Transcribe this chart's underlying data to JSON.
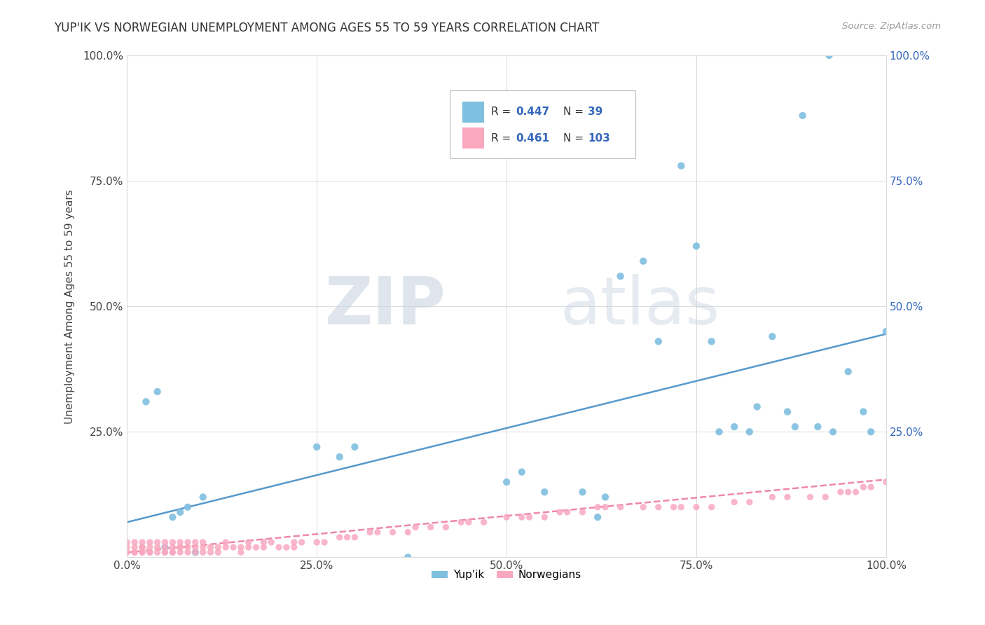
{
  "title": "YUP'IK VS NORWEGIAN UNEMPLOYMENT AMONG AGES 55 TO 59 YEARS CORRELATION CHART",
  "source": "Source: ZipAtlas.com",
  "ylabel": "Unemployment Among Ages 55 to 59 years",
  "xlim": [
    0,
    1
  ],
  "ylim": [
    0,
    1
  ],
  "xtick_labels": [
    "0.0%",
    "25.0%",
    "50.0%",
    "75.0%",
    "100.0%"
  ],
  "xtick_positions": [
    0,
    0.25,
    0.5,
    0.75,
    1.0
  ],
  "ytick_labels": [
    "25.0%",
    "50.0%",
    "75.0%",
    "100.0%"
  ],
  "ytick_positions": [
    0.25,
    0.5,
    0.75,
    1.0
  ],
  "yupik_color": "#7fbfdf",
  "norwegian_color": "#f9a8c0",
  "yupik_line_color": "#5599cc",
  "norwegian_line_color": "#ee88aa",
  "background_color": "#ffffff",
  "watermark_zip": "ZIP",
  "watermark_atlas": "atlas",
  "legend_R_yupik": "0.447",
  "legend_N_yupik": "39",
  "legend_R_norw": "0.461",
  "legend_N_norw": "103",
  "yupik_scatter_x": [
    0.025,
    0.04,
    0.05,
    0.06,
    0.07,
    0.08,
    0.09,
    0.1,
    0.25,
    0.28,
    0.3,
    0.37,
    0.5,
    0.52,
    0.55,
    0.6,
    0.62,
    0.63,
    0.65,
    0.68,
    0.7,
    0.73,
    0.75,
    0.77,
    0.78,
    0.8,
    0.82,
    0.83,
    0.85,
    0.87,
    0.88,
    0.89,
    0.91,
    0.925,
    0.93,
    0.95,
    0.97,
    0.98,
    1.0
  ],
  "yupik_scatter_y": [
    0.31,
    0.33,
    0.02,
    0.08,
    0.09,
    0.1,
    0.01,
    0.12,
    0.22,
    0.2,
    0.22,
    0.0,
    0.15,
    0.17,
    0.13,
    0.13,
    0.08,
    0.12,
    0.56,
    0.59,
    0.43,
    0.78,
    0.62,
    0.43,
    0.25,
    0.26,
    0.25,
    0.3,
    0.44,
    0.29,
    0.26,
    0.88,
    0.26,
    1.0,
    0.25,
    0.37,
    0.29,
    0.25,
    0.45
  ],
  "yupik_line_x0": 0.0,
  "yupik_line_y0": 0.07,
  "yupik_line_x1": 1.0,
  "yupik_line_y1": 0.445,
  "norw_line_x0": 0.0,
  "norw_line_y0": 0.01,
  "norw_line_x1": 1.0,
  "norw_line_y1": 0.155,
  "norw_scatter_x": [
    0.0,
    0.0,
    0.0,
    0.01,
    0.01,
    0.01,
    0.01,
    0.02,
    0.02,
    0.02,
    0.02,
    0.02,
    0.03,
    0.03,
    0.03,
    0.03,
    0.04,
    0.04,
    0.04,
    0.05,
    0.05,
    0.05,
    0.05,
    0.06,
    0.06,
    0.06,
    0.06,
    0.07,
    0.07,
    0.07,
    0.07,
    0.08,
    0.08,
    0.08,
    0.09,
    0.09,
    0.09,
    0.1,
    0.1,
    0.1,
    0.11,
    0.11,
    0.12,
    0.12,
    0.13,
    0.13,
    0.14,
    0.15,
    0.15,
    0.16,
    0.16,
    0.17,
    0.18,
    0.18,
    0.19,
    0.2,
    0.21,
    0.22,
    0.22,
    0.23,
    0.25,
    0.26,
    0.28,
    0.29,
    0.3,
    0.32,
    0.33,
    0.35,
    0.37,
    0.38,
    0.4,
    0.42,
    0.44,
    0.45,
    0.47,
    0.5,
    0.52,
    0.53,
    0.55,
    0.57,
    0.58,
    0.6,
    0.62,
    0.63,
    0.65,
    0.68,
    0.7,
    0.72,
    0.73,
    0.75,
    0.77,
    0.8,
    0.82,
    0.85,
    0.87,
    0.9,
    0.92,
    0.94,
    0.95,
    0.96,
    0.97,
    0.98,
    1.0
  ],
  "norw_scatter_y": [
    0.01,
    0.02,
    0.03,
    0.01,
    0.01,
    0.02,
    0.03,
    0.01,
    0.01,
    0.02,
    0.02,
    0.03,
    0.01,
    0.01,
    0.02,
    0.03,
    0.01,
    0.02,
    0.03,
    0.01,
    0.01,
    0.02,
    0.03,
    0.01,
    0.01,
    0.02,
    0.03,
    0.01,
    0.02,
    0.02,
    0.03,
    0.01,
    0.02,
    0.03,
    0.01,
    0.02,
    0.03,
    0.01,
    0.02,
    0.03,
    0.01,
    0.02,
    0.01,
    0.02,
    0.02,
    0.03,
    0.02,
    0.01,
    0.02,
    0.02,
    0.03,
    0.02,
    0.02,
    0.03,
    0.03,
    0.02,
    0.02,
    0.02,
    0.03,
    0.03,
    0.03,
    0.03,
    0.04,
    0.04,
    0.04,
    0.05,
    0.05,
    0.05,
    0.05,
    0.06,
    0.06,
    0.06,
    0.07,
    0.07,
    0.07,
    0.08,
    0.08,
    0.08,
    0.08,
    0.09,
    0.09,
    0.09,
    0.1,
    0.1,
    0.1,
    0.1,
    0.1,
    0.1,
    0.1,
    0.1,
    0.1,
    0.11,
    0.11,
    0.12,
    0.12,
    0.12,
    0.12,
    0.13,
    0.13,
    0.13,
    0.14,
    0.14,
    0.15
  ]
}
